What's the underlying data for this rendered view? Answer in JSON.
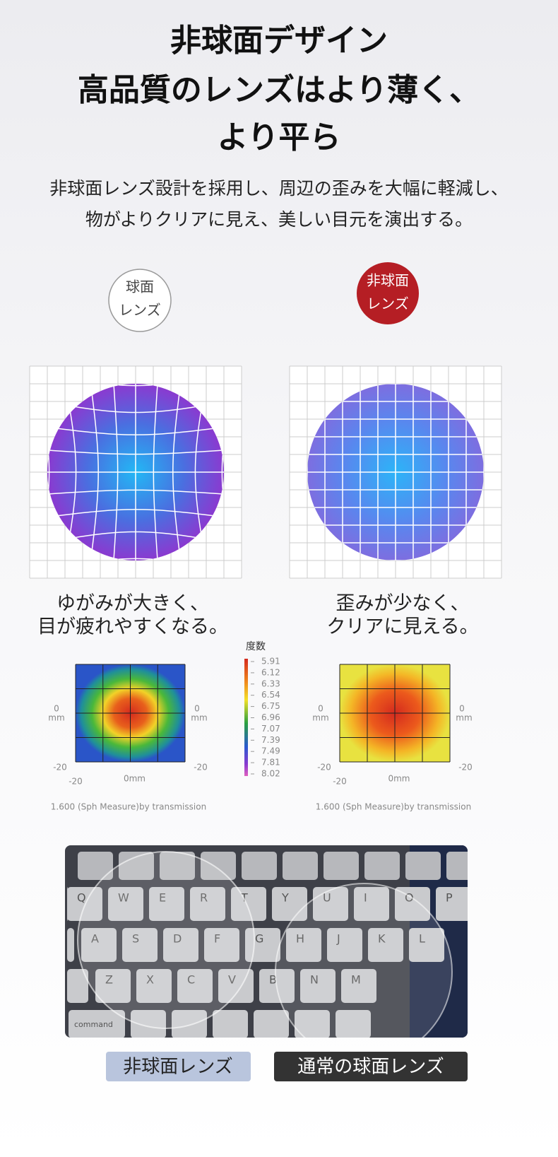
{
  "header": {
    "title_lines": [
      "非球面デザイン",
      "高品質のレンズはより薄く、",
      "より平ら"
    ],
    "description_lines": [
      "非球面レンズ設計を採用し、周辺の歪みを大幅に軽減し、",
      "物がよりクリアに見え、美しい目元を演出する。"
    ]
  },
  "comparison": {
    "left": {
      "badge": [
        "球面",
        "レンズ"
      ],
      "caption": [
        "ゆがみが大きく、",
        "目が疲れやすくなる。"
      ],
      "map_labels": {
        "left_zero": "0",
        "left_unit": "mm",
        "right_zero": "0",
        "right_unit": "mm",
        "left_bottom": "-20",
        "right_bottom": "-20",
        "x_start": "-20",
        "x_mid": "0mm"
      },
      "footnote": "1.600 (Sph Measure)by transmission"
    },
    "right": {
      "badge": [
        "非球面",
        "レンズ"
      ],
      "caption": [
        "歪みが少なく、",
        "クリアに見える。"
      ],
      "map_labels": {
        "left_zero": "0",
        "left_unit": "mm",
        "right_zero": "0",
        "right_unit": "mm",
        "left_bottom": "-20",
        "right_bottom": "-20",
        "x_start": "-20",
        "x_mid": "0mm"
      },
      "footnote": "1.600 (Sph Measure)by transmission"
    },
    "legend": {
      "title": "度数",
      "values": [
        "5.91",
        "6.12",
        "6.33",
        "6.54",
        "6.75",
        "6.96",
        "7.07",
        "7.39",
        "7.49",
        "7.81",
        "8.02"
      ]
    }
  },
  "photo": {
    "key_rows": [
      [
        "Q",
        "W",
        "E",
        "R",
        "T",
        "Y",
        "U",
        "I",
        "O",
        "P"
      ],
      [
        "A",
        "S",
        "D",
        "F",
        "G",
        "H",
        "J",
        "K",
        "L"
      ],
      [
        "Z",
        "X",
        "C",
        "V",
        "B",
        "N",
        "M"
      ]
    ],
    "modifier": "command"
  },
  "labels": {
    "aspheric": "非球面レンズ",
    "spherical": "通常の球面レンズ"
  }
}
